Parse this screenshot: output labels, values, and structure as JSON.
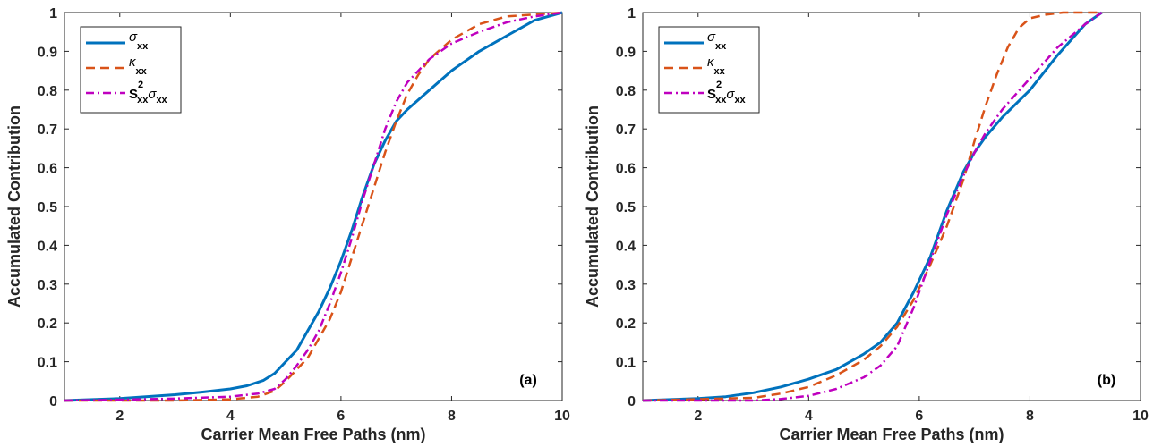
{
  "chart_data": [
    {
      "type": "line",
      "panel_label": "(a)",
      "xlabel": "Carrier Mean Free Paths (nm)",
      "ylabel": "Accumulated Contribution",
      "xlim": [
        1,
        10
      ],
      "ylim": [
        0,
        1
      ],
      "xticks": [
        "2",
        "4",
        "6",
        "8",
        "10"
      ],
      "yticks": [
        "0",
        "0.1",
        "0.2",
        "0.3",
        "0.4",
        "0.5",
        "0.6",
        "0.7",
        "0.8",
        "0.9",
        "1"
      ],
      "legend_position": "top-left",
      "grid": false,
      "series": [
        {
          "legend": {
            "sym": "σ",
            "sub": "xx"
          },
          "color": "#0072BD",
          "style": "solid",
          "x": [
            1.0,
            2.0,
            3.0,
            3.5,
            4.0,
            4.3,
            4.6,
            4.8,
            5.0,
            5.2,
            5.4,
            5.6,
            5.8,
            6.0,
            6.2,
            6.4,
            6.6,
            6.8,
            7.0,
            7.2,
            7.6,
            8.0,
            8.5,
            9.0,
            9.5,
            10.0
          ],
          "y": [
            0.0,
            0.005,
            0.015,
            0.022,
            0.03,
            0.038,
            0.052,
            0.07,
            0.1,
            0.13,
            0.18,
            0.23,
            0.29,
            0.36,
            0.44,
            0.53,
            0.61,
            0.67,
            0.72,
            0.75,
            0.8,
            0.85,
            0.9,
            0.94,
            0.98,
            1.0
          ]
        },
        {
          "legend": {
            "sym": "κ",
            "sub": "xx"
          },
          "color": "#D95319",
          "style": "dashed",
          "x": [
            1.0,
            3.0,
            4.0,
            4.5,
            4.8,
            5.0,
            5.2,
            5.4,
            5.6,
            5.8,
            6.0,
            6.2,
            6.4,
            6.6,
            6.8,
            7.0,
            7.2,
            7.4,
            7.6,
            8.0,
            8.5,
            9.0,
            9.5,
            10.0
          ],
          "y": [
            0.0,
            0.0,
            0.003,
            0.01,
            0.025,
            0.05,
            0.08,
            0.11,
            0.16,
            0.21,
            0.28,
            0.37,
            0.46,
            0.55,
            0.64,
            0.72,
            0.79,
            0.84,
            0.88,
            0.93,
            0.97,
            0.99,
            0.995,
            1.0
          ]
        },
        {
          "legend": {
            "s": "S",
            "sup": "2",
            "sub": "xx",
            "sym": "σ",
            "sub2": "xx"
          },
          "color": "#BF00BF",
          "style": "dashdot",
          "x": [
            1.0,
            2.0,
            3.0,
            4.0,
            4.5,
            4.8,
            5.0,
            5.2,
            5.4,
            5.6,
            5.8,
            6.0,
            6.2,
            6.4,
            6.6,
            6.8,
            7.0,
            7.2,
            7.6,
            8.0,
            8.5,
            9.0,
            9.5,
            10.0
          ],
          "y": [
            0.0,
            0.002,
            0.005,
            0.01,
            0.018,
            0.03,
            0.055,
            0.09,
            0.13,
            0.18,
            0.25,
            0.33,
            0.42,
            0.52,
            0.61,
            0.7,
            0.77,
            0.82,
            0.88,
            0.92,
            0.95,
            0.975,
            0.99,
            1.0
          ]
        }
      ]
    },
    {
      "type": "line",
      "panel_label": "(b)",
      "xlabel": "Carrier Mean Free Paths (nm)",
      "ylabel": "Accumulated Contribution",
      "xlim": [
        1,
        10
      ],
      "ylim": [
        0,
        1
      ],
      "xticks": [
        "2",
        "4",
        "6",
        "8",
        "10"
      ],
      "yticks": [
        "0",
        "0.1",
        "0.2",
        "0.3",
        "0.4",
        "0.5",
        "0.6",
        "0.7",
        "0.8",
        "0.9",
        "1"
      ],
      "legend_position": "top-left",
      "grid": false,
      "series": [
        {
          "legend": {
            "sym": "σ",
            "sub": "xx"
          },
          "color": "#0072BD",
          "style": "solid",
          "x": [
            1.0,
            2.0,
            2.5,
            3.0,
            3.5,
            4.0,
            4.5,
            5.0,
            5.3,
            5.6,
            5.9,
            6.2,
            6.5,
            6.8,
            7.0,
            7.2,
            7.5,
            8.0,
            8.5,
            9.0,
            9.3
          ],
          "y": [
            0.0,
            0.005,
            0.01,
            0.02,
            0.035,
            0.055,
            0.08,
            0.12,
            0.15,
            0.2,
            0.28,
            0.37,
            0.49,
            0.59,
            0.64,
            0.68,
            0.73,
            0.8,
            0.89,
            0.97,
            1.0
          ]
        },
        {
          "legend": {
            "sym": "κ",
            "sub": "xx"
          },
          "color": "#D95319",
          "style": "dashed",
          "x": [
            1.0,
            3.0,
            3.5,
            4.0,
            4.5,
            5.0,
            5.3,
            5.6,
            5.9,
            6.2,
            6.5,
            6.8,
            7.0,
            7.2,
            7.4,
            7.6,
            7.8,
            8.0,
            8.3,
            8.6,
            9.0,
            9.3
          ],
          "y": [
            0.0,
            0.007,
            0.018,
            0.035,
            0.065,
            0.105,
            0.14,
            0.19,
            0.26,
            0.35,
            0.45,
            0.57,
            0.67,
            0.76,
            0.84,
            0.91,
            0.96,
            0.985,
            0.995,
            1.0,
            1.0,
            1.0
          ]
        },
        {
          "legend": {
            "s": "S",
            "sup": "2",
            "sub": "xx",
            "sym": "σ",
            "sub2": "xx"
          },
          "color": "#BF00BF",
          "style": "dashdot",
          "x": [
            1.0,
            3.0,
            3.5,
            4.0,
            4.5,
            5.0,
            5.3,
            5.6,
            5.9,
            6.2,
            6.5,
            6.8,
            7.0,
            7.2,
            7.5,
            8.0,
            8.5,
            9.0,
            9.3
          ],
          "y": [
            0.0,
            0.0,
            0.004,
            0.012,
            0.03,
            0.06,
            0.09,
            0.14,
            0.24,
            0.36,
            0.48,
            0.58,
            0.64,
            0.69,
            0.75,
            0.83,
            0.91,
            0.97,
            1.0
          ]
        }
      ]
    }
  ]
}
